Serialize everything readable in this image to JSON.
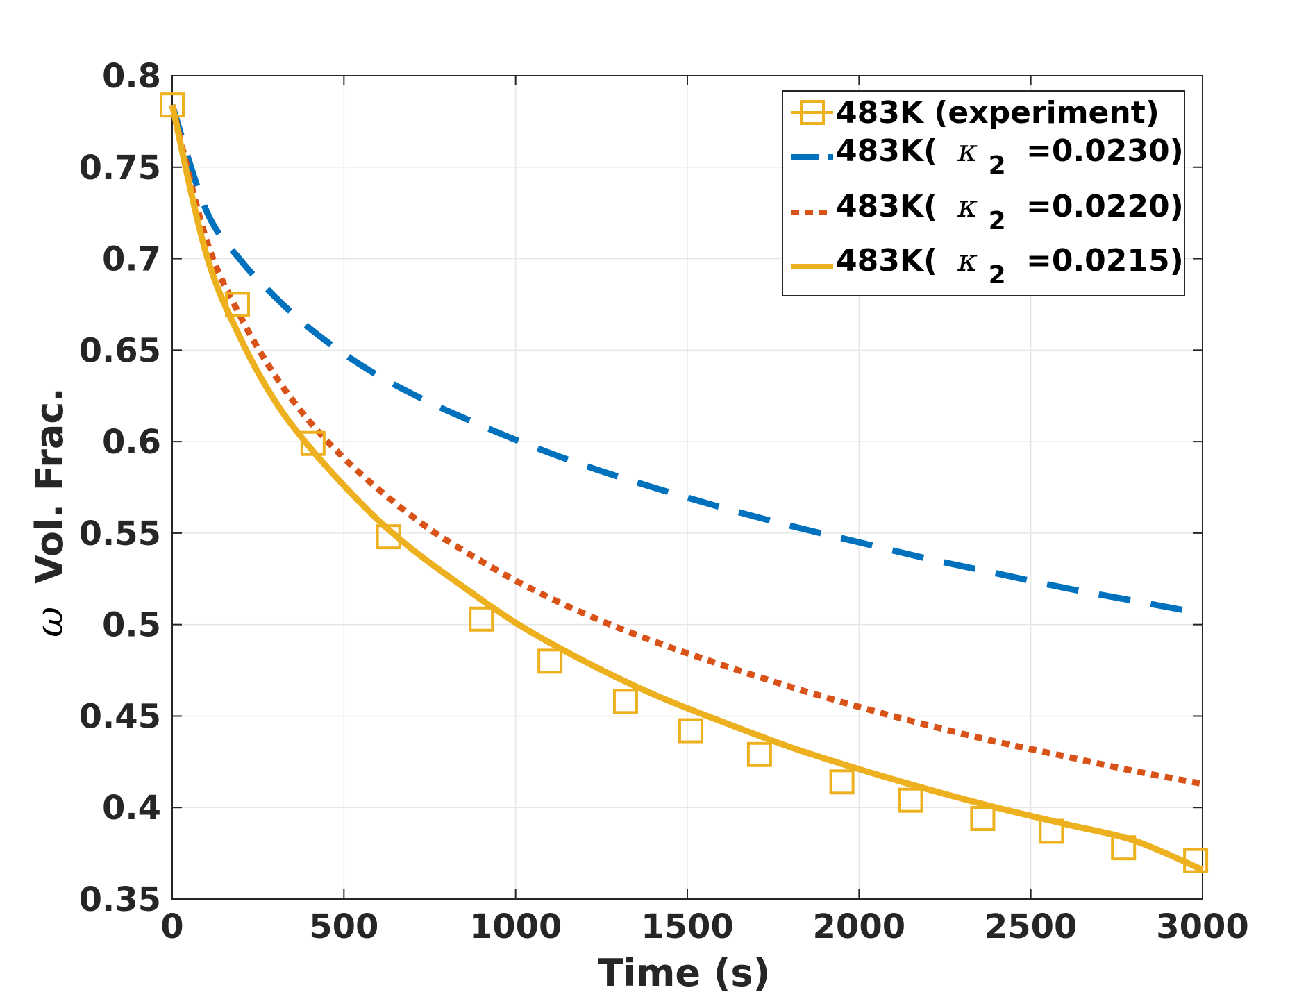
{
  "chart_data": {
    "type": "line",
    "title": "",
    "xlabel": "Time (s)",
    "ylabel_symbol": "ω",
    "ylabel": "Vol. Frac.",
    "xlim": [
      0,
      3000
    ],
    "ylim": [
      0.35,
      0.8
    ],
    "xticks": [
      0,
      500,
      1000,
      1500,
      2000,
      2500,
      3000
    ],
    "xtick_labels": [
      "0",
      "500",
      "1000",
      "1500",
      "2000",
      "2500",
      "3000"
    ],
    "yticks": [
      0.35,
      0.4,
      0.45,
      0.5,
      0.55,
      0.6,
      0.65,
      0.7,
      0.75,
      0.8
    ],
    "ytick_labels": [
      "0.35",
      "0.4",
      "0.45",
      "0.5",
      "0.55",
      "0.6",
      "0.65",
      "0.7",
      "0.75",
      "0.8"
    ],
    "grid": true,
    "legend_position": "top-right",
    "series": [
      {
        "name": "483K (experiment)",
        "legend_label": "483K (experiment)",
        "style": "markers-squares",
        "color": "#EDB120",
        "x": [
          0,
          190,
          410,
          630,
          900,
          1100,
          1320,
          1510,
          1710,
          1950,
          2150,
          2360,
          2560,
          2770,
          2980
        ],
        "y": [
          0.784,
          0.675,
          0.599,
          0.548,
          0.503,
          0.48,
          0.458,
          0.442,
          0.429,
          0.414,
          0.404,
          0.394,
          0.387,
          0.378,
          0.371
        ]
      },
      {
        "name": "483K(κ2=0.0230)",
        "legend_prefix": "483K(",
        "legend_symbol": "κ",
        "legend_sub": "2",
        "legend_suffix": "=0.0230)",
        "style": "dashed",
        "color": "#0072BD",
        "x": [
          0,
          100,
          200,
          300,
          400,
          500,
          600,
          700,
          800,
          1000,
          1200,
          1400,
          1600,
          1800,
          2000,
          2200,
          2400,
          2600,
          2800,
          3000
        ],
        "y": [
          0.784,
          0.726,
          0.699,
          0.679,
          0.662,
          0.648,
          0.636,
          0.626,
          0.617,
          0.601,
          0.587,
          0.575,
          0.564,
          0.554,
          0.545,
          0.536,
          0.528,
          0.52,
          0.513,
          0.506
        ]
      },
      {
        "name": "483K(κ2=0.0220)",
        "legend_prefix": "483K(",
        "legend_symbol": "κ",
        "legend_sub": "2",
        "legend_suffix": "=0.0220)",
        "style": "dotted",
        "color": "#D95319",
        "x": [
          0,
          100,
          200,
          300,
          400,
          500,
          600,
          700,
          800,
          1000,
          1200,
          1400,
          1600,
          1800,
          2000,
          2200,
          2400,
          2600,
          2800,
          3000
        ],
        "y": [
          0.784,
          0.71,
          0.668,
          0.636,
          0.611,
          0.591,
          0.574,
          0.559,
          0.546,
          0.524,
          0.506,
          0.491,
          0.478,
          0.466,
          0.455,
          0.445,
          0.436,
          0.428,
          0.42,
          0.413
        ]
      },
      {
        "name": "483K(κ2=0.0215)",
        "legend_prefix": "483K(",
        "legend_symbol": "κ",
        "legend_sub": "2",
        "legend_suffix": "=0.0215)",
        "style": "solid",
        "color": "#EDB120",
        "x": [
          0,
          100,
          200,
          300,
          400,
          500,
          600,
          700,
          800,
          1000,
          1200,
          1400,
          1600,
          1800,
          2000,
          2200,
          2400,
          2600,
          2800,
          3000
        ],
        "y": [
          0.784,
          0.702,
          0.656,
          0.622,
          0.597,
          0.576,
          0.557,
          0.541,
          0.527,
          0.501,
          0.48,
          0.462,
          0.447,
          0.433,
          0.421,
          0.41,
          0.4,
          0.391,
          0.382,
          0.366
        ]
      }
    ]
  },
  "colors": {
    "axis": "#262626",
    "grid": "#e6e6e6",
    "background": "#ffffff"
  }
}
